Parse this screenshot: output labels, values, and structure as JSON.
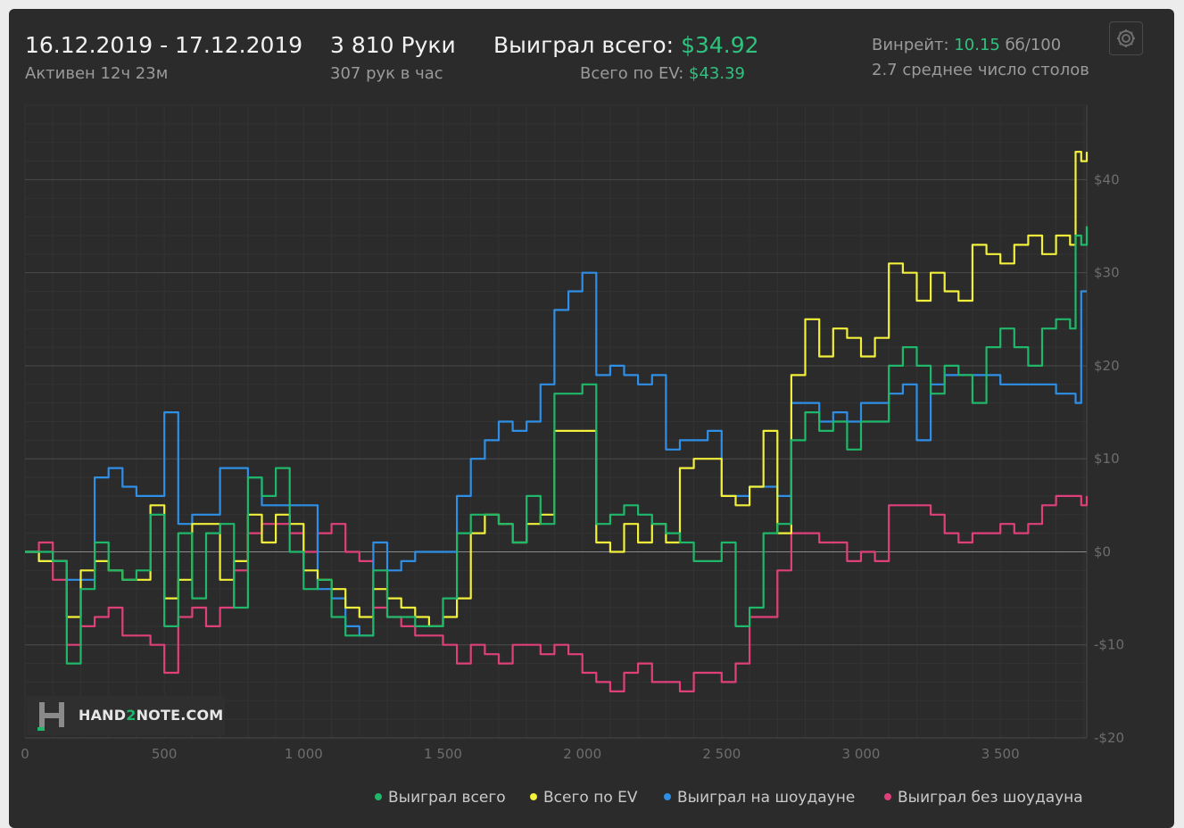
{
  "header": {
    "date_range": "16.12.2019 - 17.12.2019",
    "active": "Активен 12ч 23м",
    "hands": "3 810 Руки",
    "hands_per_hour": "307 рук в час",
    "won_label": "Выиграл всего:",
    "won_value": "$34.92",
    "ev_label": "Всего по EV:",
    "ev_value": "$43.39",
    "winrate_label": "Винрейт:",
    "winrate_value": "10.15",
    "winrate_unit": "бб/100",
    "avg_tables": "2.7 среднее число столов"
  },
  "logo": {
    "text_a": "HAND",
    "text_b": "2",
    "text_c": "NOTE.COM"
  },
  "colors": {
    "green": "#1fb86a",
    "yellow": "#f2f03a",
    "blue": "#2f8fe6",
    "pink": "#e0407a"
  },
  "icons": {
    "settings": "gear-icon",
    "logo": "hand2note-logo"
  },
  "chart_data": {
    "type": "line",
    "xlim": [
      0,
      3810
    ],
    "ylim": [
      -20,
      48
    ],
    "x_ticks": [
      0,
      500,
      1000,
      1500,
      2000,
      2500,
      3000,
      3500
    ],
    "x_tick_labels": [
      "0",
      "500",
      "1 000",
      "1 500",
      "2 000",
      "2 500",
      "3 000",
      "3 500"
    ],
    "y_ticks": [
      -20,
      -10,
      0,
      10,
      20,
      30,
      40
    ],
    "y_tick_labels": [
      "-$20",
      "-$10",
      "$0",
      "$10",
      "$20",
      "$30",
      "$40"
    ],
    "grid": true,
    "legend_position": "bottom-right",
    "series": [
      {
        "name": "Выиграл всего",
        "color": "#1fb86a",
        "x": [
          0,
          50,
          100,
          150,
          200,
          250,
          300,
          350,
          400,
          450,
          500,
          550,
          600,
          650,
          700,
          750,
          800,
          850,
          900,
          950,
          1000,
          1050,
          1100,
          1150,
          1200,
          1250,
          1300,
          1350,
          1400,
          1450,
          1500,
          1550,
          1600,
          1650,
          1700,
          1750,
          1800,
          1850,
          1900,
          1950,
          2000,
          2050,
          2100,
          2150,
          2200,
          2250,
          2300,
          2350,
          2400,
          2450,
          2500,
          2550,
          2600,
          2650,
          2700,
          2750,
          2800,
          2850,
          2900,
          2950,
          3000,
          3050,
          3100,
          3150,
          3200,
          3250,
          3300,
          3350,
          3400,
          3450,
          3500,
          3550,
          3600,
          3650,
          3700,
          3750,
          3770,
          3790,
          3810
        ],
        "values": [
          0,
          0,
          -1,
          -12,
          -4,
          1,
          -2,
          -3,
          -2,
          4,
          -8,
          2,
          -5,
          2,
          3,
          -6,
          8,
          6,
          9,
          0,
          -4,
          -3,
          -7,
          -9,
          -9,
          -2,
          -7,
          -7,
          -8,
          -8,
          -5,
          2,
          4,
          4,
          3,
          1,
          6,
          3,
          17,
          17,
          18,
          3,
          4,
          5,
          4,
          3,
          2,
          1,
          -1,
          -1,
          1,
          -8,
          -6,
          2,
          3,
          12,
          15,
          13,
          14,
          11,
          14,
          14,
          20,
          22,
          20,
          17,
          20,
          19,
          16,
          22,
          24,
          22,
          20,
          24,
          25,
          24,
          34,
          33,
          35
        ]
      },
      {
        "name": "Всего по EV",
        "color": "#f2f03a",
        "x": [
          0,
          50,
          100,
          150,
          200,
          250,
          300,
          350,
          400,
          450,
          500,
          550,
          600,
          650,
          700,
          750,
          800,
          850,
          900,
          950,
          1000,
          1050,
          1100,
          1150,
          1200,
          1250,
          1300,
          1350,
          1400,
          1450,
          1500,
          1550,
          1600,
          1650,
          1700,
          1750,
          1800,
          1850,
          1900,
          1950,
          2000,
          2050,
          2100,
          2150,
          2200,
          2250,
          2300,
          2350,
          2400,
          2450,
          2500,
          2550,
          2600,
          2650,
          2700,
          2750,
          2800,
          2850,
          2900,
          2950,
          3000,
          3050,
          3100,
          3150,
          3200,
          3250,
          3300,
          3350,
          3400,
          3450,
          3500,
          3550,
          3600,
          3650,
          3700,
          3750,
          3770,
          3790,
          3810
        ],
        "values": [
          0,
          -1,
          -1,
          -7,
          -2,
          -1,
          -2,
          -3,
          -3,
          5,
          -5,
          -3,
          3,
          3,
          -3,
          -1,
          4,
          1,
          4,
          3,
          -2,
          -3,
          -4,
          -6,
          -7,
          -4,
          -5,
          -6,
          -7,
          -8,
          -7,
          -5,
          2,
          4,
          3,
          1,
          3,
          4,
          13,
          13,
          13,
          1,
          0,
          3,
          1,
          3,
          1,
          9,
          10,
          10,
          6,
          5,
          7,
          13,
          2,
          19,
          25,
          21,
          24,
          23,
          21,
          23,
          31,
          30,
          27,
          30,
          28,
          27,
          33,
          32,
          31,
          33,
          34,
          32,
          34,
          33,
          43,
          42,
          43
        ]
      },
      {
        "name": "Выиграл на шоудауне",
        "color": "#2f8fe6",
        "x": [
          0,
          50,
          100,
          150,
          200,
          250,
          300,
          350,
          400,
          450,
          500,
          550,
          600,
          650,
          700,
          750,
          800,
          850,
          900,
          950,
          1000,
          1050,
          1100,
          1150,
          1200,
          1250,
          1300,
          1350,
          1400,
          1450,
          1500,
          1550,
          1600,
          1650,
          1700,
          1750,
          1800,
          1850,
          1900,
          1950,
          2000,
          2050,
          2100,
          2150,
          2200,
          2250,
          2300,
          2350,
          2400,
          2450,
          2500,
          2550,
          2600,
          2650,
          2700,
          2750,
          2800,
          2850,
          2900,
          2950,
          3000,
          3050,
          3100,
          3150,
          3200,
          3250,
          3300,
          3350,
          3400,
          3450,
          3500,
          3550,
          3600,
          3650,
          3700,
          3750,
          3770,
          3790,
          3810
        ],
        "values": [
          0,
          -1,
          -1,
          -3,
          -3,
          8,
          9,
          7,
          6,
          6,
          15,
          3,
          4,
          4,
          9,
          9,
          8,
          5,
          5,
          5,
          5,
          -4,
          -5,
          -8,
          -9,
          1,
          -2,
          -1,
          0,
          0,
          0,
          6,
          10,
          12,
          14,
          13,
          14,
          18,
          26,
          28,
          30,
          19,
          20,
          19,
          18,
          19,
          11,
          12,
          12,
          13,
          6,
          6,
          7,
          7,
          6,
          16,
          16,
          14,
          15,
          14,
          16,
          16,
          17,
          18,
          12,
          18,
          19,
          19,
          19,
          19,
          18,
          18,
          18,
          18,
          17,
          17,
          16,
          28,
          28
        ]
      },
      {
        "name": "Выиграл без шоудауна",
        "color": "#e0407a",
        "x": [
          0,
          50,
          100,
          150,
          200,
          250,
          300,
          350,
          400,
          450,
          500,
          550,
          600,
          650,
          700,
          750,
          800,
          850,
          900,
          950,
          1000,
          1050,
          1100,
          1150,
          1200,
          1250,
          1300,
          1350,
          1400,
          1450,
          1500,
          1550,
          1600,
          1650,
          1700,
          1750,
          1800,
          1850,
          1900,
          1950,
          2000,
          2050,
          2100,
          2150,
          2200,
          2250,
          2300,
          2350,
          2400,
          2450,
          2500,
          2550,
          2600,
          2650,
          2700,
          2750,
          2800,
          2850,
          2900,
          2950,
          3000,
          3050,
          3100,
          3150,
          3200,
          3250,
          3300,
          3350,
          3400,
          3450,
          3500,
          3550,
          3600,
          3650,
          3700,
          3750,
          3770,
          3790,
          3810
        ],
        "values": [
          0,
          1,
          -3,
          -10,
          -8,
          -7,
          -6,
          -9,
          -9,
          -10,
          -13,
          -7,
          -6,
          -8,
          -6,
          -2,
          2,
          3,
          3,
          2,
          0,
          2,
          3,
          0,
          -1,
          -6,
          -7,
          -8,
          -9,
          -9,
          -10,
          -12,
          -10,
          -11,
          -12,
          -10,
          -10,
          -11,
          -10,
          -11,
          -13,
          -14,
          -15,
          -13,
          -12,
          -14,
          -14,
          -15,
          -13,
          -13,
          -14,
          -12,
          -7,
          -7,
          -2,
          2,
          2,
          1,
          1,
          -1,
          0,
          -1,
          5,
          5,
          5,
          4,
          2,
          1,
          2,
          2,
          3,
          2,
          3,
          5,
          6,
          6,
          6,
          5,
          6
        ]
      }
    ]
  }
}
